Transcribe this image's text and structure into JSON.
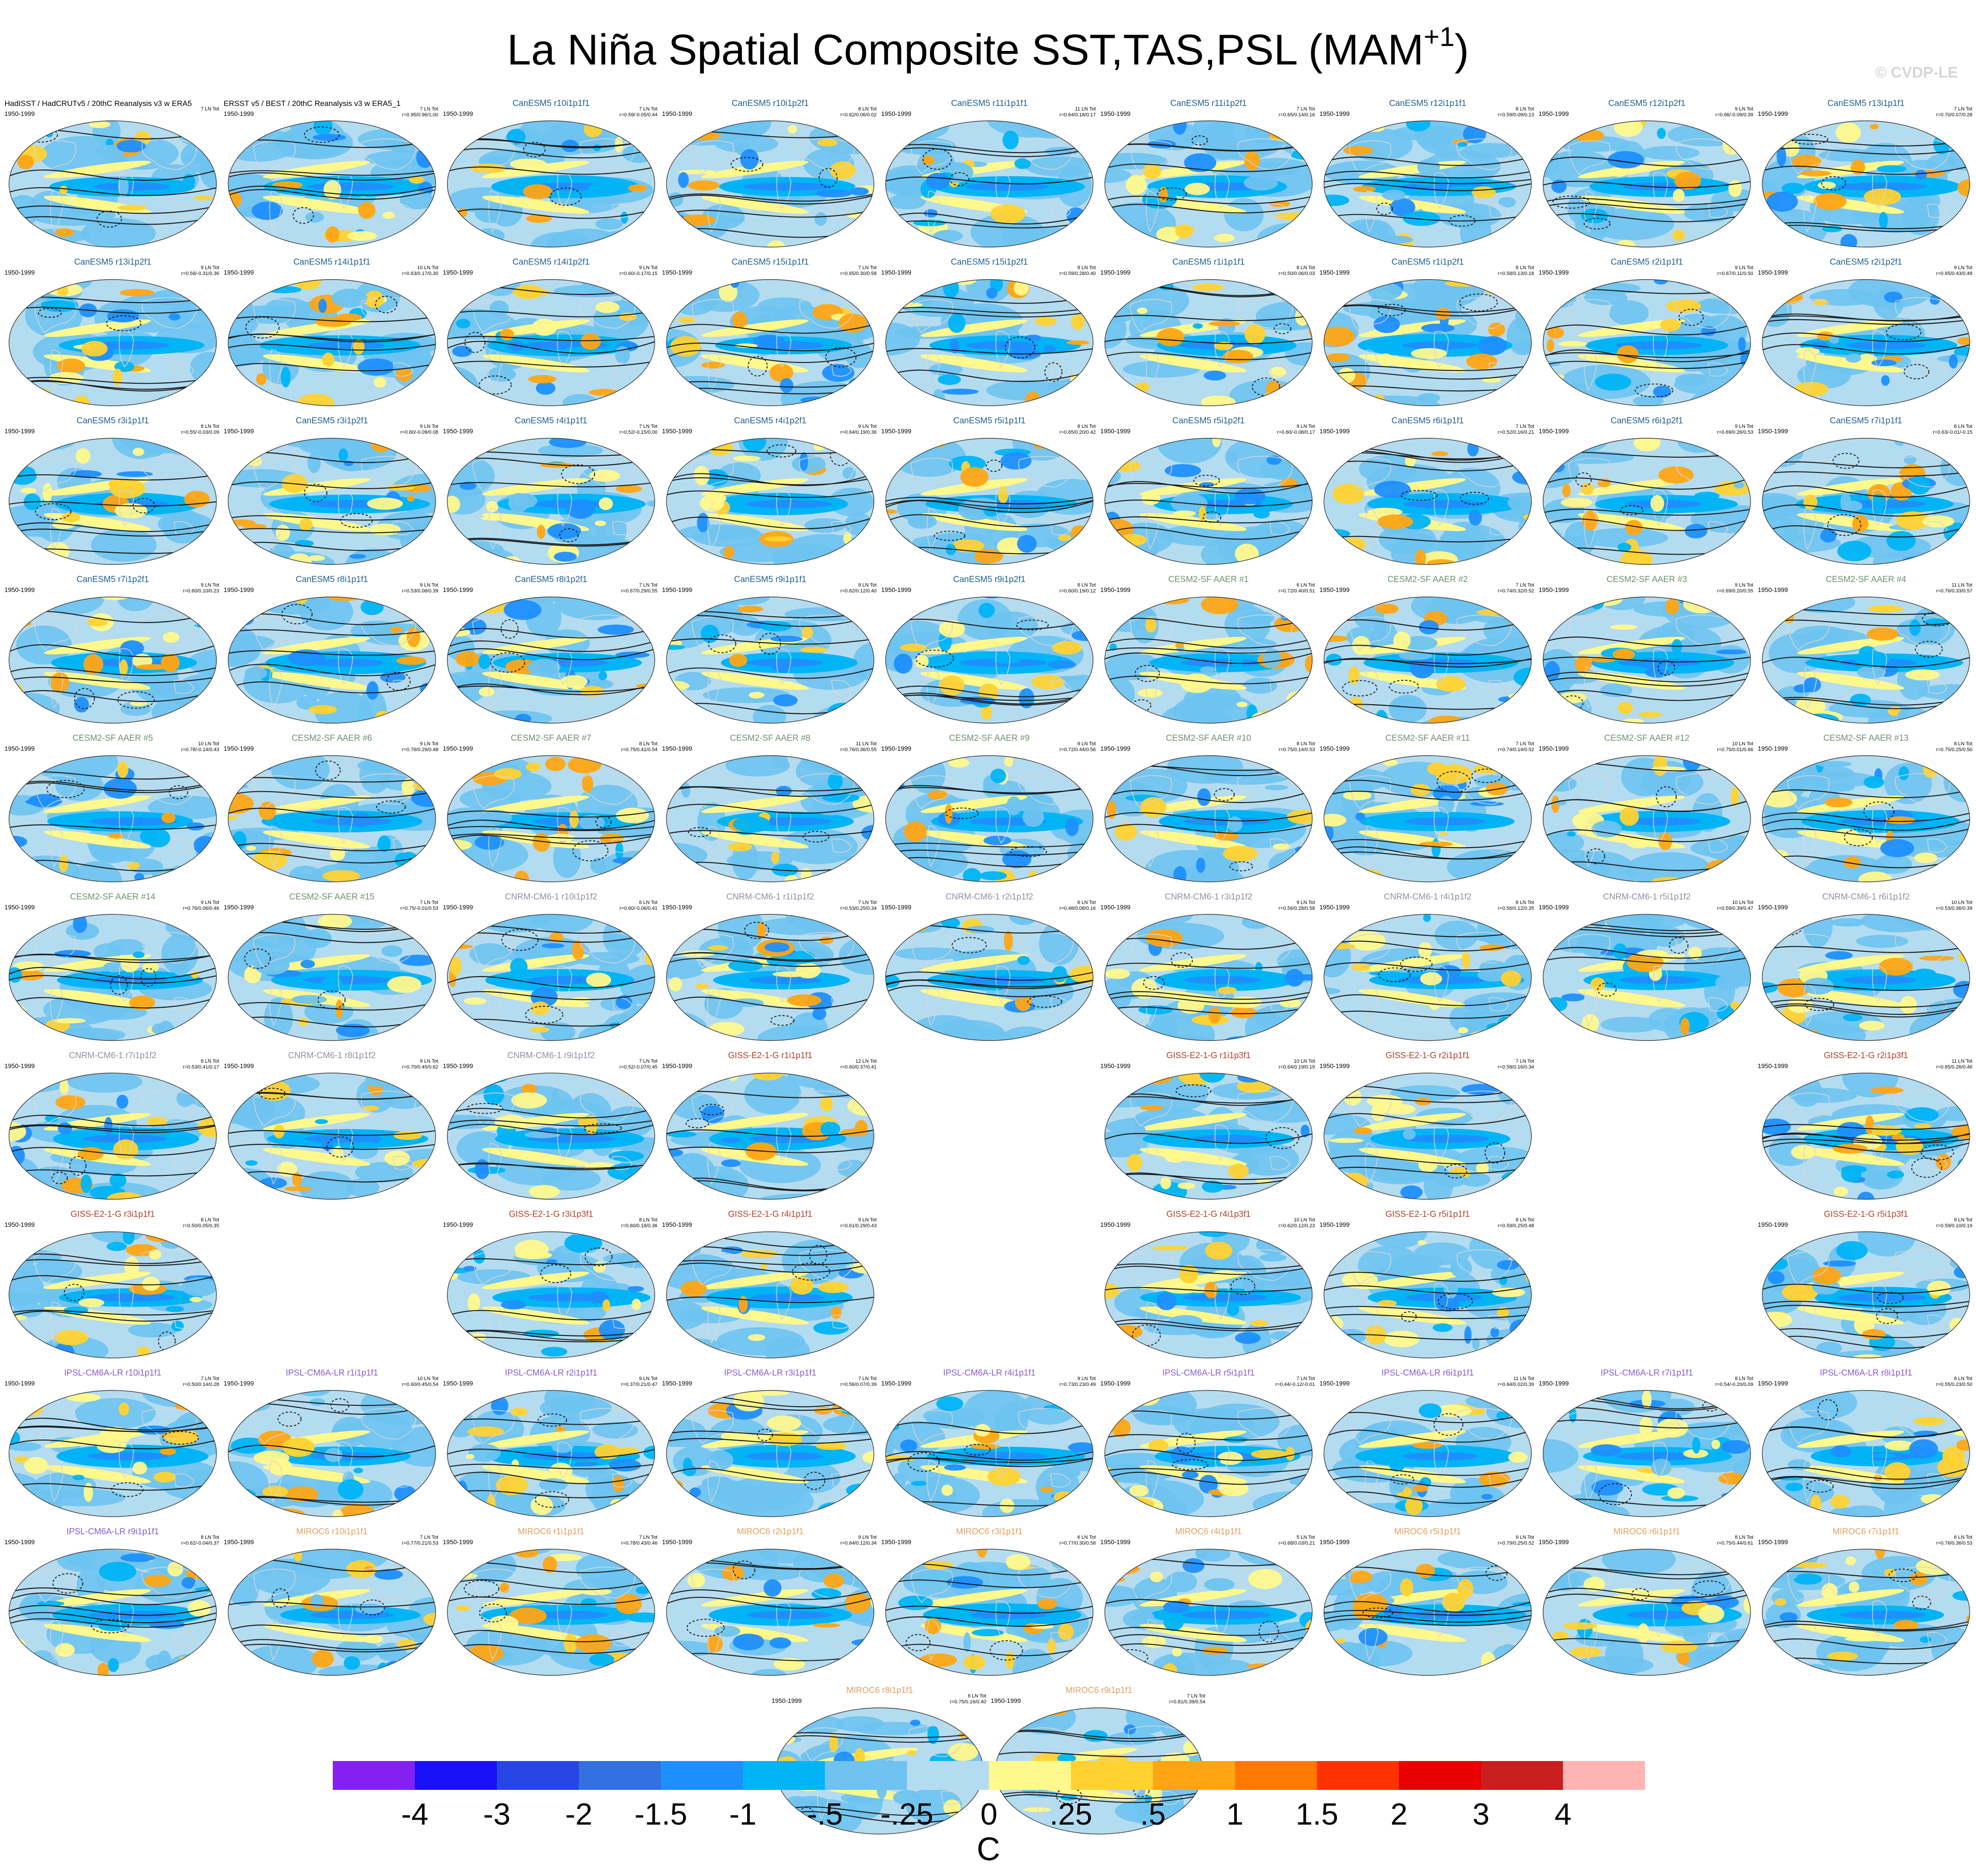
{
  "figure": {
    "title": "La Niña Spatial Composite SST,TAS,PSL (MAM",
    "title_superscript": "+1",
    "title_close": ")",
    "copyright": "© CVDP-LE",
    "period": "1950-1999"
  },
  "group_colors": {
    "Obs": "#000000",
    "CanESM5": "#1f5f8f",
    "CESM2": "#6f8f6f",
    "CNRM": "#8f8f9f",
    "GISS": "#b0422a",
    "IPSL": "#8a5ad0",
    "MIROC": "#e0a060"
  },
  "panels": [
    {
      "title": "HadISST / HadCRUTv5 / 20thC Reanalysis v3 w ERA5",
      "group": "Obs",
      "count": "7 LN Tot",
      "stats": "",
      "row": 0,
      "col": 0
    },
    {
      "title": "ERSST v5 / BEST / 20thC Reanalysis v3 w ERA5_1",
      "group": "Obs",
      "count": "7 LN Tot",
      "stats": "r=0.95/0.96/1.00",
      "row": 0,
      "col": 1
    },
    {
      "title": "CanESM5 r10i1p1f1",
      "group": "CanESM5",
      "count": "7 LN Tot",
      "stats": "r=0.59/-0.05/0.44",
      "row": 0,
      "col": 2
    },
    {
      "title": "CanESM5 r10i1p2f1",
      "group": "CanESM5",
      "count": "8 LN Tot",
      "stats": "r=0.62/0.06/0.02",
      "row": 0,
      "col": 3
    },
    {
      "title": "CanESM5 r11i1p1f1",
      "group": "CanESM5",
      "count": "11 LN Tot",
      "stats": "r=0.64/0.18/0.17",
      "row": 0,
      "col": 4
    },
    {
      "title": "CanESM5 r11i1p2f1",
      "group": "CanESM5",
      "count": "7 LN Tot",
      "stats": "r=0.65/0.14/0.16",
      "row": 0,
      "col": 5
    },
    {
      "title": "CanESM5 r12i1p1f1",
      "group": "CanESM5",
      "count": "8 LN Tot",
      "stats": "r=0.59/0.09/0.13",
      "row": 0,
      "col": 6
    },
    {
      "title": "CanESM5 r12i1p2f1",
      "group": "CanESM5",
      "count": "9 LN Tot",
      "stats": "r=0.66/-0.09/0.39",
      "row": 0,
      "col": 7
    },
    {
      "title": "CanESM5 r13i1p1f1",
      "group": "CanESM5",
      "count": "7 LN Tot",
      "stats": "r=0.70/0.07/0.28",
      "row": 0,
      "col": 8
    },
    {
      "title": "CanESM5 r13i1p2f1",
      "group": "CanESM5",
      "count": "9 LN Tot",
      "stats": "r=0.58/-0.31/0.36",
      "row": 1,
      "col": 0
    },
    {
      "title": "CanESM5 r14i1p1f1",
      "group": "CanESM5",
      "count": "10 LN Tot",
      "stats": "r=0.63/0.17/0.30",
      "row": 1,
      "col": 1
    },
    {
      "title": "CanESM5 r14i1p2f1",
      "group": "CanESM5",
      "count": "9 LN Tot",
      "stats": "r=0.60/-0.17/0.15",
      "row": 1,
      "col": 2
    },
    {
      "title": "CanESM5 r15i1p1f1",
      "group": "CanESM5",
      "count": "7 LN Tot",
      "stats": "r=0.65/0.30/0.58",
      "row": 1,
      "col": 3
    },
    {
      "title": "CanESM5 r15i1p2f1",
      "group": "CanESM5",
      "count": "8 LN Tot",
      "stats": "r=0.59/0.28/0.40",
      "row": 1,
      "col": 4
    },
    {
      "title": "CanESM5 r1i1p1f1",
      "group": "CanESM5",
      "count": "8 LN Tot",
      "stats": "r=0.50/0.06/0.03",
      "row": 1,
      "col": 5
    },
    {
      "title": "CanESM5 r1i1p2f1",
      "group": "CanESM5",
      "count": "8 LN Tot",
      "stats": "r=0.58/0.13/0.18",
      "row": 1,
      "col": 6
    },
    {
      "title": "CanESM5 r2i1p1f1",
      "group": "CanESM5",
      "count": "9 LN Tot",
      "stats": "r=0.67/0.11/0.50",
      "row": 1,
      "col": 7
    },
    {
      "title": "CanESM5 r2i1p2f1",
      "group": "CanESM5",
      "count": "9 LN Tot",
      "stats": "r=0.65/0.43/0.48",
      "row": 1,
      "col": 8
    },
    {
      "title": "CanESM5 r3i1p1f1",
      "group": "CanESM5",
      "count": "8 LN Tot",
      "stats": "r=0.55/-0.03/0.09",
      "row": 2,
      "col": 0
    },
    {
      "title": "CanESM5 r3i1p2f1",
      "group": "CanESM5",
      "count": "9 LN Tot",
      "stats": "r=0.60/-0.09/0.08",
      "row": 2,
      "col": 1
    },
    {
      "title": "CanESM5 r4i1p1f1",
      "group": "CanESM5",
      "count": "7 LN Tot",
      "stats": "r=0.52/-0.15/0.00",
      "row": 2,
      "col": 2
    },
    {
      "title": "CanESM5 r4i1p2f1",
      "group": "CanESM5",
      "count": "9 LN Tot",
      "stats": "r=0.64/0.19/0.36",
      "row": 2,
      "col": 3
    },
    {
      "title": "CanESM5 r5i1p1f1",
      "group": "CanESM5",
      "count": "8 LN Tot",
      "stats": "r=0.65/0.20/0.42",
      "row": 2,
      "col": 4
    },
    {
      "title": "CanESM5 r5i1p2f1",
      "group": "CanESM5",
      "count": "9 LN Tot",
      "stats": "r=0.60/-0.08/0.17",
      "row": 2,
      "col": 5
    },
    {
      "title": "CanESM5 r6i1p1f1",
      "group": "CanESM5",
      "count": "7 LN Tot",
      "stats": "r=0.52/0.16/0.21",
      "row": 2,
      "col": 6
    },
    {
      "title": "CanESM5 r6i1p2f1",
      "group": "CanESM5",
      "count": "9 LN Tot",
      "stats": "r=0.69/0.26/0.53",
      "row": 2,
      "col": 7
    },
    {
      "title": "CanESM5 r7i1p1f1",
      "group": "CanESM5",
      "count": "6 LN Tot",
      "stats": "r=0.63/-0.01/-0.15",
      "row": 2,
      "col": 8
    },
    {
      "title": "CanESM5 r7i1p2f1",
      "group": "CanESM5",
      "count": "9 LN Tot",
      "stats": "r=0.60/0.10/0.23",
      "row": 3,
      "col": 0
    },
    {
      "title": "CanESM5 r8i1p1f1",
      "group": "CanESM5",
      "count": "9 LN Tot",
      "stats": "r=0.53/0.08/0.39",
      "row": 3,
      "col": 1
    },
    {
      "title": "CanESM5 r8i1p2f1",
      "group": "CanESM5",
      "count": "7 LN Tot",
      "stats": "r=0.67/0.29/0.55",
      "row": 3,
      "col": 2
    },
    {
      "title": "CanESM5 r9i1p1f1",
      "group": "CanESM5",
      "count": "8 LN Tot",
      "stats": "r=0.62/0.12/0.40",
      "row": 3,
      "col": 3
    },
    {
      "title": "CanESM5 r9i1p2f1",
      "group": "CanESM5",
      "count": "8 LN Tot",
      "stats": "r=0.60/0.19/0.12",
      "row": 3,
      "col": 4
    },
    {
      "title": "CESM2-SF AAER #1",
      "group": "CESM2",
      "count": "6 LN Tot",
      "stats": "r=0.72/0.40/0.51",
      "row": 3,
      "col": 5
    },
    {
      "title": "CESM2-SF AAER #2",
      "group": "CESM2",
      "count": "7 LN Tot",
      "stats": "r=0.74/0.32/0.52",
      "row": 3,
      "col": 6
    },
    {
      "title": "CESM2-SF AAER #3",
      "group": "CESM2",
      "count": "9 LN Tot",
      "stats": "r=0.69/0.20/0.55",
      "row": 3,
      "col": 7
    },
    {
      "title": "CESM2-SF AAER #4",
      "group": "CESM2",
      "count": "11 LN Tot",
      "stats": "r=0.76/0.33/0.57",
      "row": 3,
      "col": 8
    },
    {
      "title": "CESM2-SF AAER #5",
      "group": "CESM2",
      "count": "10 LN Tot",
      "stats": "r=0.78/-0.14/0.43",
      "row": 4,
      "col": 0
    },
    {
      "title": "CESM2-SF AAER #6",
      "group": "CESM2",
      "count": "9 LN Tot",
      "stats": "r=0.76/0.29/0.48",
      "row": 4,
      "col": 1
    },
    {
      "title": "CESM2-SF AAER #7",
      "group": "CESM2",
      "count": "8 LN Tot",
      "stats": "r=0.75/0.41/0.54",
      "row": 4,
      "col": 2
    },
    {
      "title": "CESM2-SF AAER #8",
      "group": "CESM2",
      "count": "11 LN Tot",
      "stats": "r=0.76/0.36/0.55",
      "row": 4,
      "col": 3
    },
    {
      "title": "CESM2-SF AAER #9",
      "group": "CESM2",
      "count": "9 LN Tot",
      "stats": "r=0.72/0.44/0.56",
      "row": 4,
      "col": 4
    },
    {
      "title": "CESM2-SF AAER #10",
      "group": "CESM2",
      "count": "8 LN Tot",
      "stats": "r=0.75/0.14/0.53",
      "row": 4,
      "col": 5
    },
    {
      "title": "CESM2-SF AAER #11",
      "group": "CESM2",
      "count": "7 LN Tot",
      "stats": "r=0.74/0.14/0.52",
      "row": 4,
      "col": 6
    },
    {
      "title": "CESM2-SF AAER #12",
      "group": "CESM2",
      "count": "10 LN Tot",
      "stats": "r=0.75/0.01/0.66",
      "row": 4,
      "col": 7
    },
    {
      "title": "CESM2-SF AAER #13",
      "group": "CESM2",
      "count": "8 LN Tot",
      "stats": "r=0.75/0.25/0.50",
      "row": 4,
      "col": 8
    },
    {
      "title": "CESM2-SF AAER #14",
      "group": "CESM2",
      "count": "9 LN Tot",
      "stats": "r=0.76/0.06/0.46",
      "row": 5,
      "col": 0
    },
    {
      "title": "CESM2-SF AAER #15",
      "group": "CESM2",
      "count": "7 LN Tot",
      "stats": "r=0.75/-0.01/0.53",
      "row": 5,
      "col": 1
    },
    {
      "title": "CNRM-CM6-1 r10i1p1f2",
      "group": "CNRM",
      "count": "6 LN Tot",
      "stats": "r=0.60/-0.06/0.41",
      "row": 5,
      "col": 2
    },
    {
      "title": "CNRM-CM6-1 r1i1p1f2",
      "group": "CNRM",
      "count": "7 LN Tot",
      "stats": "r=0.53/0.25/0.34",
      "row": 5,
      "col": 3
    },
    {
      "title": "CNRM-CM6-1 r2i1p1f2",
      "group": "CNRM",
      "count": "6 LN Tot",
      "stats": "r=0.48/0.08/0.16",
      "row": 5,
      "col": 4
    },
    {
      "title": "CNRM-CM6-1 r3i1p1f2",
      "group": "CNRM",
      "count": "9 LN Tot",
      "stats": "r=0.56/0.28/0.58",
      "row": 5,
      "col": 5
    },
    {
      "title": "CNRM-CM6-1 r4i1p1f2",
      "group": "CNRM",
      "count": "8 LN Tot",
      "stats": "r=0.56/0.12/0.35",
      "row": 5,
      "col": 6
    },
    {
      "title": "CNRM-CM6-1 r5i1p1f2",
      "group": "CNRM",
      "count": "10 LN Tot",
      "stats": "r=0.59/0.39/0.47",
      "row": 5,
      "col": 7
    },
    {
      "title": "CNRM-CM6-1 r6i1p1f2",
      "group": "CNRM",
      "count": "10 LN Tot",
      "stats": "r=0.53/0.36/0.39",
      "row": 5,
      "col": 8
    },
    {
      "title": "CNRM-CM6-1 r7i1p1f2",
      "group": "CNRM",
      "count": "8 LN Tot",
      "stats": "r=0.53/0.41/0.17",
      "row": 6,
      "col": 0
    },
    {
      "title": "CNRM-CM6-1 r8i1p1f2",
      "group": "CNRM",
      "count": "9 LN Tot",
      "stats": "r=0.70/0.45/0.62",
      "row": 6,
      "col": 1
    },
    {
      "title": "CNRM-CM6-1 r9i1p1f2",
      "group": "CNRM",
      "count": "7 LN Tot",
      "stats": "r=0.52/-0.07/0.45",
      "row": 6,
      "col": 2
    },
    {
      "title": "GISS-E2-1-G r1i1p1f1",
      "group": "GISS",
      "count": "12 LN Tot",
      "stats": "r=0.60/0.37/0.41",
      "row": 6,
      "col": 3
    },
    {
      "title": "GISS-E2-1-G r1i1p3f1",
      "group": "GISS",
      "count": "10 LN Tot",
      "stats": "r=0.64/0.19/0.19",
      "row": 6,
      "col": 5
    },
    {
      "title": "GISS-E2-1-G r2i1p1f1",
      "group": "GISS",
      "count": "7 LN Tot",
      "stats": "r=0.58/0.16/0.34",
      "row": 6,
      "col": 6
    },
    {
      "title": "GISS-E2-1-G r2i1p3f1",
      "group": "GISS",
      "count": "11 LN Tot",
      "stats": "r=0.65/0.26/0.46",
      "row": 6,
      "col": 8
    },
    {
      "title": "GISS-E2-1-G r3i1p1f1",
      "group": "GISS",
      "count": "8 LN Tot",
      "stats": "r=0.50/0.05/0.35",
      "row": 7,
      "col": 0
    },
    {
      "title": "GISS-E2-1-G r3i1p3f1",
      "group": "GISS",
      "count": "8 LN Tot",
      "stats": "r=0.60/0.18/0.36",
      "row": 7,
      "col": 2
    },
    {
      "title": "GISS-E2-1-G r4i1p1f1",
      "group": "GISS",
      "count": "9 LN Tot",
      "stats": "r=0.61/0.29/0.43",
      "row": 7,
      "col": 3
    },
    {
      "title": "GISS-E2-1-G r4i1p3f1",
      "group": "GISS",
      "count": "10 LN Tot",
      "stats": "r=0.62/0.12/0.23",
      "row": 7,
      "col": 5
    },
    {
      "title": "GISS-E2-1-G r5i1p1f1",
      "group": "GISS",
      "count": "8 LN Tot",
      "stats": "r=0.59/0.25/0.48",
      "row": 7,
      "col": 6
    },
    {
      "title": "GISS-E2-1-G r5i1p3f1",
      "group": "GISS",
      "count": "9 LN Tot",
      "stats": "r=0.59/0.10/0.19",
      "row": 7,
      "col": 8
    },
    {
      "title": "IPSL-CM6A-LR r10i1p1f1",
      "group": "IPSL",
      "count": "7 LN Tot",
      "stats": "r=0.50/0.14/0.28",
      "row": 8,
      "col": 0
    },
    {
      "title": "IPSL-CM6A-LR r1i1p1f1",
      "group": "IPSL",
      "count": "10 LN Tot",
      "stats": "r=0.60/0.45/0.54",
      "row": 8,
      "col": 1
    },
    {
      "title": "IPSL-CM6A-LR r2i1p1f1",
      "group": "IPSL",
      "count": "9 LN Tot",
      "stats": "r=0.37/0.21/0.47",
      "row": 8,
      "col": 2
    },
    {
      "title": "IPSL-CM6A-LR r3i1p1f1",
      "group": "IPSL",
      "count": "7 LN Tot",
      "stats": "r=0.56/0.07/0.39",
      "row": 8,
      "col": 3
    },
    {
      "title": "IPSL-CM6A-LR r4i1p1f1",
      "group": "IPSL",
      "count": "9 LN Tot",
      "stats": "r=0.73/0.23/0.49",
      "row": 8,
      "col": 4
    },
    {
      "title": "IPSL-CM6A-LR r5i1p1f1",
      "group": "IPSL",
      "count": "7 LN Tot",
      "stats": "r=0.44/-0.12/-0.01",
      "row": 8,
      "col": 5
    },
    {
      "title": "IPSL-CM6A-LR r6i1p1f1",
      "group": "IPSL",
      "count": "11 LN Tot",
      "stats": "r=0.64/0.02/0.39",
      "row": 8,
      "col": 6
    },
    {
      "title": "IPSL-CM6A-LR r7i1p1f1",
      "group": "IPSL",
      "count": "8 LN Tot",
      "stats": "r=0.54/-0.20/0.09",
      "row": 8,
      "col": 7
    },
    {
      "title": "IPSL-CM6A-LR r8i1p1f1",
      "group": "IPSL",
      "count": "8 LN Tot",
      "stats": "r=0.55/0.23/0.50",
      "row": 8,
      "col": 8
    },
    {
      "title": "IPSL-CM6A-LR r9i1p1f1",
      "group": "IPSL",
      "count": "8 LN Tot",
      "stats": "r=0.62/-0.04/0.37",
      "row": 9,
      "col": 0
    },
    {
      "title": "MIROC6 r10i1p1f1",
      "group": "MIROC",
      "count": "7 LN Tot",
      "stats": "r=0.77/0.21/0.53",
      "row": 9,
      "col": 1
    },
    {
      "title": "MIROC6 r1i1p1f1",
      "group": "MIROC",
      "count": "7 LN Tot",
      "stats": "r=0.78/0.43/0.46",
      "row": 9,
      "col": 2
    },
    {
      "title": "MIROC6 r2i1p1f1",
      "group": "MIROC",
      "count": "9 LN Tot",
      "stats": "r=0.64/0.12/0.34",
      "row": 9,
      "col": 3
    },
    {
      "title": "MIROC6 r3i1p1f1",
      "group": "MIROC",
      "count": "6 LN Tot",
      "stats": "r=0.77/0.30/0.58",
      "row": 9,
      "col": 4
    },
    {
      "title": "MIROC6 r4i1p1f1",
      "group": "MIROC",
      "count": "5 LN Tot",
      "stats": "r=0.68/0.03/0.21",
      "row": 9,
      "col": 5
    },
    {
      "title": "MIROC6 r5i1p1f1",
      "group": "MIROC",
      "count": "9 LN Tot",
      "stats": "r=0.79/0.25/0.52",
      "row": 9,
      "col": 6
    },
    {
      "title": "MIROC6 r6i1p1f1",
      "group": "MIROC",
      "count": "8 LN Tot",
      "stats": "r=0.75/0.44/0.61",
      "row": 9,
      "col": 7
    },
    {
      "title": "MIROC6 r7i1p1f1",
      "group": "MIROC",
      "count": "6 LN Tot",
      "stats": "r=0.76/0.36/0.53",
      "row": 9,
      "col": 8
    },
    {
      "title": "MIROC6 r8i1p1f1",
      "group": "MIROC",
      "count": "6 LN Tot",
      "stats": "r=0.75/0.16/0.40",
      "row": 10,
      "col": 3.5
    },
    {
      "title": "MIROC6 r9i1p1f1",
      "group": "MIROC",
      "count": "7 LN Tot",
      "stats": "r=0.81/0.39/0.54",
      "row": 10,
      "col": 4.5
    }
  ],
  "colorbar": {
    "units": "C",
    "colors": [
      "#8420f0",
      "#1a10f5",
      "#2846e6",
      "#3370e0",
      "#1e8fff",
      "#00b4f5",
      "#6ec3f0",
      "#b4dcf0",
      "#fff88c",
      "#ffd232",
      "#ffa514",
      "#ff7800",
      "#ff3200",
      "#e60000",
      "#c81e1e",
      "#ffb4b4"
    ],
    "ticks": [
      "-4",
      "-3",
      "-2",
      "-1.5",
      "-1",
      "-.5",
      "-.25",
      "0",
      ".25",
      ".5",
      "1",
      "1.5",
      "2",
      "3",
      "4"
    ]
  }
}
